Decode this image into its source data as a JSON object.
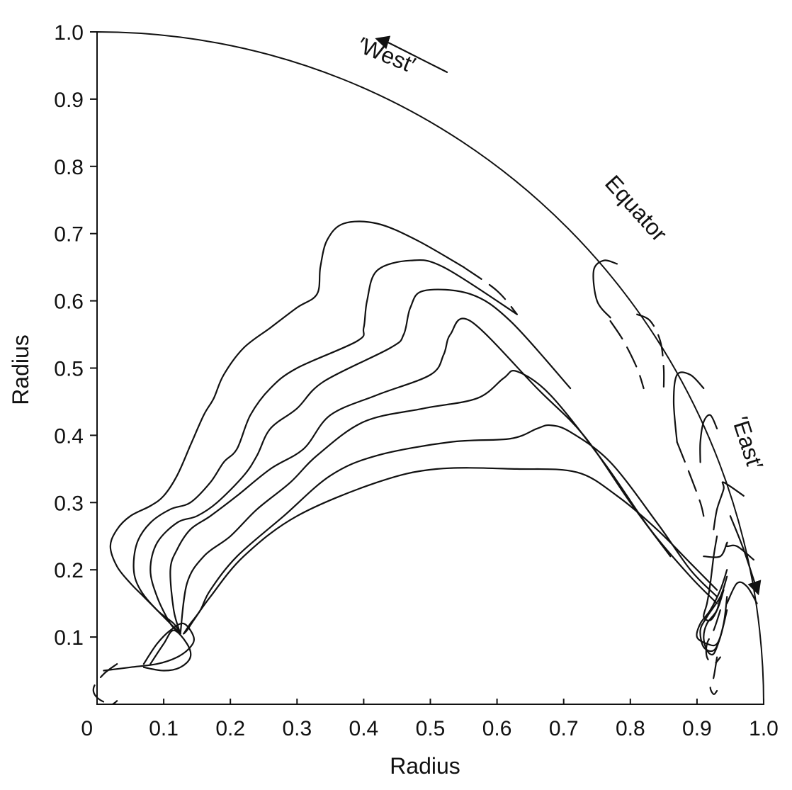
{
  "chart_data": {
    "type": "line",
    "title": "",
    "xlabel": "Radius",
    "ylabel": "Radius",
    "xlim": [
      0,
      1.0
    ],
    "ylim": [
      0,
      1.0
    ],
    "x_ticks": [
      "0",
      "0.1",
      "0.2",
      "0.3",
      "0.4",
      "0.5",
      "0.6",
      "0.7",
      "0.8",
      "0.9",
      "1.0"
    ],
    "y_ticks": [
      "0.1",
      "0.2",
      "0.3",
      "0.4",
      "0.5",
      "0.6",
      "0.7",
      "0.8",
      "0.9",
      "1.0"
    ],
    "grid": false,
    "legend": "none",
    "annotations": [
      {
        "text": "′West′",
        "x": 0.43,
        "y": 0.955
      },
      {
        "text": "Equator",
        "x": 0.8,
        "y": 0.73
      },
      {
        "text": "′East′",
        "x": 0.965,
        "y": 0.385
      }
    ],
    "boundary": {
      "shape": "quarter-circle",
      "radius": 1.0
    },
    "series": [
      {
        "style": "solid",
        "x": [
          0.55,
          0.48,
          0.42,
          0.37,
          0.345,
          0.335,
          0.33,
          0.3,
          0.26,
          0.22,
          0.19,
          0.175,
          0.16,
          0.14,
          0.12,
          0.1,
          0.08,
          0.05,
          0.03,
          0.02,
          0.03,
          0.05,
          0.07,
          0.09,
          0.11,
          0.125
        ],
        "y": [
          0.65,
          0.69,
          0.715,
          0.715,
          0.69,
          0.65,
          0.61,
          0.59,
          0.56,
          0.53,
          0.49,
          0.455,
          0.43,
          0.385,
          0.34,
          0.31,
          0.295,
          0.28,
          0.26,
          0.235,
          0.205,
          0.18,
          0.16,
          0.14,
          0.12,
          0.105
        ]
      },
      {
        "style": "dashed",
        "x": [
          0.55,
          0.6,
          0.63
        ],
        "y": [
          0.65,
          0.615,
          0.58
        ]
      },
      {
        "style": "solid",
        "x": [
          0.63,
          0.52,
          0.47,
          0.42,
          0.405,
          0.4,
          0.39,
          0.3,
          0.26,
          0.23,
          0.21,
          0.19,
          0.17,
          0.14,
          0.11,
          0.08,
          0.06,
          0.055,
          0.065,
          0.09,
          0.115,
          0.125
        ],
        "y": [
          0.58,
          0.65,
          0.66,
          0.645,
          0.6,
          0.56,
          0.54,
          0.5,
          0.47,
          0.43,
          0.38,
          0.36,
          0.33,
          0.3,
          0.29,
          0.27,
          0.24,
          0.2,
          0.17,
          0.14,
          0.12,
          0.105
        ]
      },
      {
        "style": "solid",
        "x": [
          0.71,
          0.62,
          0.56,
          0.49,
          0.47,
          0.46,
          0.44,
          0.34,
          0.3,
          0.26,
          0.24,
          0.22,
          0.18,
          0.15,
          0.12,
          0.09,
          0.08,
          0.09,
          0.11,
          0.125
        ],
        "y": [
          0.47,
          0.57,
          0.61,
          0.615,
          0.59,
          0.55,
          0.53,
          0.48,
          0.44,
          0.41,
          0.37,
          0.34,
          0.3,
          0.28,
          0.27,
          0.24,
          0.2,
          0.16,
          0.12,
          0.105
        ]
      },
      {
        "style": "solid",
        "x": [
          0.86,
          0.8,
          0.73,
          0.66,
          0.56,
          0.53,
          0.52,
          0.5,
          0.42,
          0.35,
          0.31,
          0.26,
          0.21,
          0.17,
          0.14,
          0.12,
          0.11,
          0.115,
          0.125
        ],
        "y": [
          0.22,
          0.3,
          0.4,
          0.47,
          0.57,
          0.55,
          0.52,
          0.49,
          0.46,
          0.43,
          0.38,
          0.35,
          0.31,
          0.28,
          0.26,
          0.23,
          0.2,
          0.14,
          0.105
        ]
      },
      {
        "style": "solid",
        "x": [
          0.93,
          0.89,
          0.83,
          0.76,
          0.68,
          0.63,
          0.61,
          0.57,
          0.49,
          0.4,
          0.33,
          0.29,
          0.24,
          0.2,
          0.16,
          0.135,
          0.125
        ],
        "y": [
          0.15,
          0.19,
          0.26,
          0.36,
          0.46,
          0.495,
          0.485,
          0.455,
          0.44,
          0.42,
          0.37,
          0.33,
          0.29,
          0.25,
          0.22,
          0.18,
          0.105
        ]
      },
      {
        "style": "solid",
        "x": [
          0.93,
          0.89,
          0.84,
          0.77,
          0.71,
          0.68,
          0.66,
          0.62,
          0.53,
          0.42,
          0.35,
          0.28,
          0.21,
          0.17,
          0.155,
          0.14,
          0.13
        ],
        "y": [
          0.16,
          0.2,
          0.27,
          0.36,
          0.405,
          0.415,
          0.41,
          0.395,
          0.39,
          0.37,
          0.34,
          0.28,
          0.22,
          0.17,
          0.14,
          0.12,
          0.105
        ]
      },
      {
        "style": "solid",
        "x": [
          0.93,
          0.89,
          0.84,
          0.78,
          0.72,
          0.63,
          0.51,
          0.42,
          0.3,
          0.22,
          0.17,
          0.145,
          0.135,
          0.13
        ],
        "y": [
          0.17,
          0.21,
          0.26,
          0.31,
          0.345,
          0.35,
          0.35,
          0.33,
          0.28,
          0.22,
          0.16,
          0.125,
          0.11,
          0.105
        ]
      },
      {
        "style": "solid",
        "x": [
          0.01,
          0.05,
          0.09,
          0.12,
          0.14,
          0.145,
          0.13,
          0.11,
          0.09,
          0.07
        ],
        "y": [
          0.05,
          0.055,
          0.06,
          0.07,
          0.085,
          0.1,
          0.12,
          0.11,
          0.09,
          0.06
        ]
      },
      {
        "style": "solid",
        "x": [
          0.07,
          0.1,
          0.125,
          0.14,
          0.135,
          0.115,
          0.1,
          0.08
        ],
        "y": [
          0.055,
          0.05,
          0.055,
          0.07,
          0.09,
          0.11,
          0.09,
          0.06
        ]
      },
      {
        "style": "dashed",
        "x": [
          0.03,
          0.01,
          -0.005,
          0.0,
          0.02,
          0.03
        ],
        "y": [
          0.06,
          0.045,
          0.025,
          0.01,
          0.0,
          0.005
        ]
      },
      {
        "style": "solid",
        "x": [
          0.77,
          0.75,
          0.745,
          0.76,
          0.78
        ],
        "y": [
          0.575,
          0.6,
          0.645,
          0.66,
          0.655
        ]
      },
      {
        "style": "dashed",
        "x": [
          0.77,
          0.79,
          0.81,
          0.82
        ],
        "y": [
          0.57,
          0.54,
          0.5,
          0.47
        ]
      },
      {
        "style": "dashed",
        "x": [
          0.81,
          0.83,
          0.845,
          0.85,
          0.85
        ],
        "y": [
          0.58,
          0.57,
          0.54,
          0.5,
          0.47
        ]
      },
      {
        "style": "solid",
        "x": [
          0.91,
          0.89,
          0.87,
          0.865,
          0.87
        ],
        "y": [
          0.47,
          0.49,
          0.49,
          0.45,
          0.39
        ]
      },
      {
        "style": "solid",
        "x": [
          0.93,
          0.92,
          0.91,
          0.905,
          0.905
        ],
        "y": [
          0.41,
          0.43,
          0.42,
          0.39,
          0.36
        ]
      },
      {
        "style": "dashed",
        "x": [
          0.87,
          0.89,
          0.905,
          0.91
        ],
        "y": [
          0.39,
          0.34,
          0.3,
          0.28
        ]
      },
      {
        "style": "solid",
        "x": [
          0.97,
          0.94,
          0.94,
          0.93,
          0.925
        ],
        "y": [
          0.31,
          0.33,
          0.32,
          0.29,
          0.26
        ]
      },
      {
        "style": "solid",
        "x": [
          0.91,
          0.935,
          0.945,
          0.945,
          0.96,
          0.985
        ],
        "y": [
          0.22,
          0.22,
          0.24,
          0.235,
          0.235,
          0.215
        ]
      },
      {
        "style": "solid",
        "x": [
          0.945,
          0.96,
          0.975,
          0.99
        ],
        "y": [
          0.15,
          0.18,
          0.175,
          0.15
        ]
      },
      {
        "style": "solid",
        "x": [
          0.93,
          0.925,
          0.92,
          0.915,
          0.91,
          0.92,
          0.93,
          0.935
        ],
        "y": [
          0.25,
          0.22,
          0.18,
          0.15,
          0.13,
          0.125,
          0.14,
          0.16
        ]
      },
      {
        "style": "solid",
        "x": [
          0.945,
          0.935,
          0.92,
          0.905,
          0.9,
          0.915,
          0.93,
          0.94,
          0.945
        ],
        "y": [
          0.2,
          0.17,
          0.14,
          0.12,
          0.1,
          0.09,
          0.09,
          0.12,
          0.16
        ]
      },
      {
        "style": "solid",
        "x": [
          0.945,
          0.935,
          0.915,
          0.905,
          0.91,
          0.925,
          0.935,
          0.945
        ],
        "y": [
          0.19,
          0.16,
          0.13,
          0.11,
          0.085,
          0.08,
          0.1,
          0.14
        ]
      },
      {
        "style": "solid",
        "x": [
          0.94,
          0.93,
          0.915,
          0.91,
          0.915,
          0.925,
          0.935
        ],
        "y": [
          0.17,
          0.14,
          0.12,
          0.1,
          0.08,
          0.075,
          0.1
        ]
      },
      {
        "style": "dashed",
        "x": [
          0.935,
          0.925,
          0.915,
          0.915,
          0.925,
          0.935
        ],
        "y": [
          0.14,
          0.11,
          0.09,
          0.07,
          0.06,
          0.07
        ]
      },
      {
        "style": "dashed",
        "x": [
          0.93,
          0.925,
          0.92,
          0.925,
          0.93
        ],
        "y": [
          0.07,
          0.04,
          0.025,
          0.015,
          0.02
        ]
      },
      {
        "style": "solid",
        "x": [
          0.525,
          0.475,
          0.435,
          0.425
        ],
        "y": [
          0.94,
          0.965,
          0.985,
          0.988
        ]
      },
      {
        "style": "solid",
        "x": [
          0.95,
          0.97,
          0.99
        ],
        "y": [
          0.28,
          0.23,
          0.17
        ]
      }
    ]
  }
}
